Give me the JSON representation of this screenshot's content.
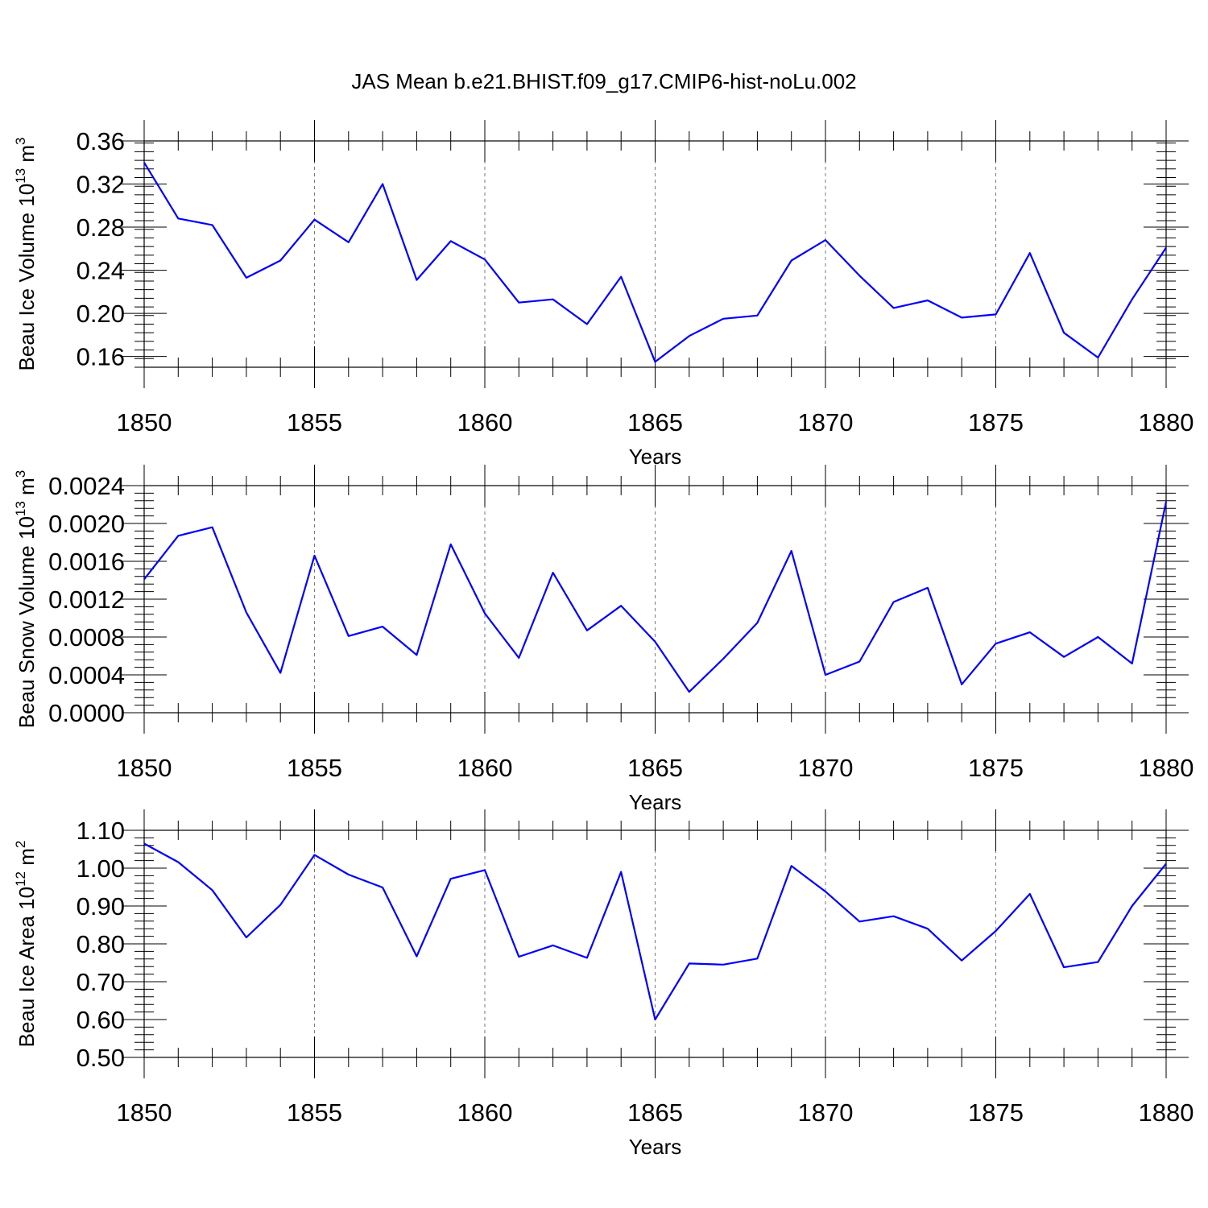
{
  "figure_title": "JAS Mean b.e21.BHIST.f09_g17.CMIP6-hist-noLu.002",
  "colors": {
    "series": "#0000ff",
    "axes": "#000000",
    "grid": "#7a7a7a"
  },
  "chart_data": [
    {
      "type": "line",
      "ylabel_main": "Beau Ice Volume 10",
      "ylabel_sup": "13",
      "ylabel_unit": "m",
      "ylabel_unit_sup": "3",
      "xlabel": "Years",
      "xlim": [
        1850,
        1880
      ],
      "ylim": [
        0.15,
        0.36
      ],
      "xticks": [
        1850,
        1855,
        1860,
        1865,
        1870,
        1875,
        1880
      ],
      "xtick_labels": [
        "1850",
        "1855",
        "1860",
        "1865",
        "1870",
        "1875",
        "1880"
      ],
      "yticks": [
        0.16,
        0.2,
        0.24,
        0.28,
        0.32,
        0.36
      ],
      "ytick_labels": [
        "0.16",
        "0.20",
        "0.24",
        "0.28",
        "0.32",
        "0.36"
      ],
      "grid": "x-dashed",
      "x": [
        1850,
        1851,
        1852,
        1853,
        1854,
        1855,
        1856,
        1857,
        1858,
        1859,
        1860,
        1861,
        1862,
        1863,
        1864,
        1865,
        1866,
        1867,
        1868,
        1869,
        1870,
        1871,
        1872,
        1873,
        1874,
        1875,
        1876,
        1877,
        1878,
        1879,
        1880
      ],
      "y": [
        0.34,
        0.288,
        0.282,
        0.233,
        0.249,
        0.287,
        0.266,
        0.32,
        0.231,
        0.267,
        0.25,
        0.21,
        0.213,
        0.19,
        0.234,
        0.155,
        0.179,
        0.195,
        0.198,
        0.249,
        0.268,
        0.235,
        0.205,
        0.212,
        0.196,
        0.199,
        0.256,
        0.182,
        0.159,
        0.213,
        0.261
      ]
    },
    {
      "type": "line",
      "ylabel_main": "Beau Snow Volume 10",
      "ylabel_sup": "13",
      "ylabel_unit": "m",
      "ylabel_unit_sup": "3",
      "xlabel": "Years",
      "xlim": [
        1850,
        1880
      ],
      "ylim": [
        0.0,
        0.0024
      ],
      "xticks": [
        1850,
        1855,
        1860,
        1865,
        1870,
        1875,
        1880
      ],
      "xtick_labels": [
        "1850",
        "1855",
        "1860",
        "1865",
        "1870",
        "1875",
        "1880"
      ],
      "yticks": [
        0.0,
        0.0004,
        0.0008,
        0.0012,
        0.0016,
        0.002,
        0.0024
      ],
      "ytick_labels": [
        "0.0000",
        "0.0004",
        "0.0008",
        "0.0012",
        "0.0016",
        "0.0020",
        "0.0024"
      ],
      "grid": "x-dashed",
      "x": [
        1850,
        1851,
        1852,
        1853,
        1854,
        1855,
        1856,
        1857,
        1858,
        1859,
        1860,
        1861,
        1862,
        1863,
        1864,
        1865,
        1866,
        1867,
        1868,
        1869,
        1870,
        1871,
        1872,
        1873,
        1874,
        1875,
        1876,
        1877,
        1878,
        1879,
        1880
      ],
      "y": [
        0.00141,
        0.00187,
        0.00196,
        0.00106,
        0.00042,
        0.00166,
        0.00081,
        0.00091,
        0.00061,
        0.00178,
        0.00105,
        0.00058,
        0.00148,
        0.00087,
        0.00113,
        0.00075,
        0.00022,
        0.00057,
        0.00095,
        0.00171,
        0.0004,
        0.00054,
        0.00117,
        0.00132,
        0.0003,
        0.00073,
        0.00085,
        0.00059,
        0.0008,
        0.00052,
        0.00223
      ]
    },
    {
      "type": "line",
      "ylabel_main": "Beau Ice Area 10",
      "ylabel_sup": "12",
      "ylabel_unit": "m",
      "ylabel_unit_sup": "2",
      "xlabel": "Years",
      "xlim": [
        1850,
        1880
      ],
      "ylim": [
        0.5,
        1.1
      ],
      "xticks": [
        1850,
        1855,
        1860,
        1865,
        1870,
        1875,
        1880
      ],
      "xtick_labels": [
        "1850",
        "1855",
        "1860",
        "1865",
        "1870",
        "1875",
        "1880"
      ],
      "yticks": [
        0.5,
        0.6,
        0.7,
        0.8,
        0.9,
        1.0,
        1.1
      ],
      "ytick_labels": [
        "0.50",
        "0.60",
        "0.70",
        "0.80",
        "0.90",
        "1.00",
        "1.10"
      ],
      "grid": "x-dashed",
      "x": [
        1850,
        1851,
        1852,
        1853,
        1854,
        1855,
        1856,
        1857,
        1858,
        1859,
        1860,
        1861,
        1862,
        1863,
        1864,
        1865,
        1866,
        1867,
        1868,
        1869,
        1870,
        1871,
        1872,
        1873,
        1874,
        1875,
        1876,
        1877,
        1878,
        1879,
        1880
      ],
      "y": [
        1.065,
        1.016,
        0.942,
        0.817,
        0.903,
        1.035,
        0.983,
        0.949,
        0.767,
        0.972,
        0.995,
        0.766,
        0.796,
        0.763,
        0.99,
        0.6,
        0.748,
        0.745,
        0.761,
        1.006,
        0.938,
        0.859,
        0.873,
        0.84,
        0.756,
        0.834,
        0.932,
        0.738,
        0.752,
        0.9,
        1.012
      ]
    }
  ]
}
